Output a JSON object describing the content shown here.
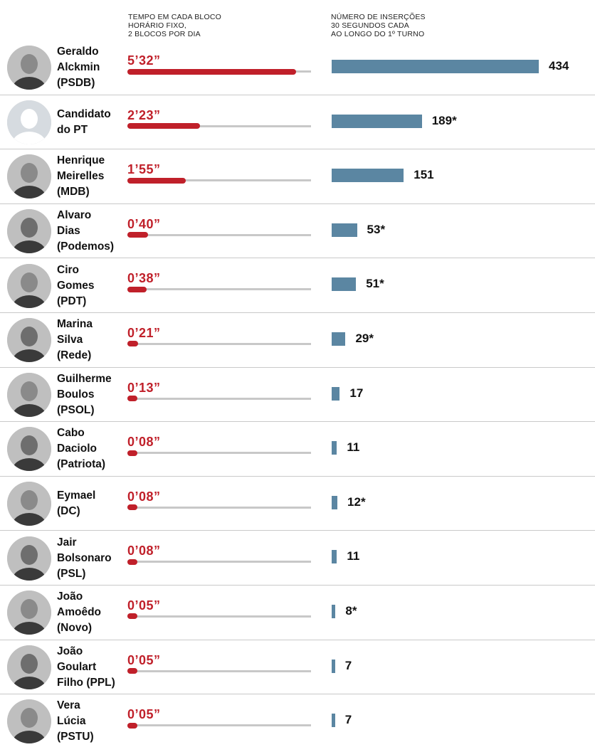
{
  "headers": {
    "time": "TEMPO EM CADA BLOCO\nHORÁRIO FIXO,\n2 BLOCOS POR DIA",
    "insertions": "NÚMERO DE INSERÇÕES\n30 SEGUNDOS CADA\nAO LONGO DO 1º TURNO"
  },
  "chart_data": {
    "type": "bar",
    "categories": [
      "Geraldo Alckmin (PSDB)",
      "Candidato do PT",
      "Henrique Meirelles (MDB)",
      "Alvaro Dias (Podemos)",
      "Ciro Gomes (PDT)",
      "Marina Silva (Rede)",
      "Guilherme Boulos (PSOL)",
      "Cabo Daciolo (Patriota)",
      "Eymael (DC)",
      "Jair Bolsonaro (PSL)",
      "João Amoêdo (Novo)",
      "João Goulart Filho (PPL)",
      "Vera Lúcia (PSTU)"
    ],
    "series": [
      {
        "name": "TEMPO EM CADA BLOCO HORÁRIO FIXO, 2 BLOCOS POR DIA",
        "labels": [
          "5’32”",
          "2’23”",
          "1’55”",
          "0’40”",
          "0’38”",
          "0’21”",
          "0’13”",
          "0’08”",
          "0’08”",
          "0’08”",
          "0’05”",
          "0’05”",
          "0’05”"
        ],
        "values_seconds": [
          332,
          143,
          115,
          40,
          38,
          21,
          13,
          8,
          8,
          8,
          5,
          5,
          5
        ]
      },
      {
        "name": "NÚMERO DE INSERÇÕES 30 SEGUNDOS CADA AO LONGO DO 1º TURNO",
        "labels": [
          "434",
          "189*",
          "151",
          "53*",
          "51*",
          "29*",
          "17",
          "11",
          "12*",
          "11",
          "8*",
          "7",
          "7"
        ],
        "values": [
          434,
          189,
          151,
          53,
          51,
          29,
          17,
          11,
          12,
          11,
          8,
          7,
          7
        ]
      }
    ]
  },
  "candidates": [
    {
      "name": "Geraldo\nAlckmin\n(PSDB)",
      "time": "5’32”",
      "ins": "434",
      "avatar_icon": "person-photo-icon"
    },
    {
      "name": "Candidato\ndo PT",
      "time": "2’23”",
      "ins": "189*",
      "avatar_icon": "placeholder-person-icon"
    },
    {
      "name": "Henrique\nMeirelles\n(MDB)",
      "time": "1’55”",
      "ins": "151",
      "avatar_icon": "person-photo-icon"
    },
    {
      "name": "Alvaro\nDias\n(Podemos)",
      "time": "0’40”",
      "ins": "53*",
      "avatar_icon": "person-photo-icon"
    },
    {
      "name": "Ciro\nGomes\n(PDT)",
      "time": "0’38”",
      "ins": "51*",
      "avatar_icon": "person-photo-icon"
    },
    {
      "name": "Marina\nSilva\n(Rede)",
      "time": "0’21”",
      "ins": "29*",
      "avatar_icon": "person-photo-icon"
    },
    {
      "name": "Guilherme\nBoulos\n(PSOL)",
      "time": "0’13”",
      "ins": "17",
      "avatar_icon": "person-photo-icon"
    },
    {
      "name": "Cabo\nDaciolo\n(Patriota)",
      "time": "0’08”",
      "ins": "11",
      "avatar_icon": "person-photo-icon"
    },
    {
      "name": "Eymael\n(DC)",
      "time": "0’08”",
      "ins": "12*",
      "avatar_icon": "person-photo-icon"
    },
    {
      "name": "Jair\nBolsonaro\n(PSL)",
      "time": "0’08”",
      "ins": "11",
      "avatar_icon": "person-photo-icon"
    },
    {
      "name": "João\nAmoêdo\n(Novo)",
      "time": "0’05”",
      "ins": "8*",
      "avatar_icon": "person-photo-icon"
    },
    {
      "name": "João\nGoulart\nFilho (PPL)",
      "time": "0’05”",
      "ins": "7",
      "avatar_icon": "person-photo-icon"
    },
    {
      "name": "Vera\nLúcia\n(PSTU)",
      "time": "0’05”",
      "ins": "7",
      "avatar_icon": "person-photo-icon"
    }
  ],
  "colors": {
    "time_bar": "#c0202a",
    "time_track": "#c8c8c8",
    "insertion_bar": "#5b86a2"
  }
}
